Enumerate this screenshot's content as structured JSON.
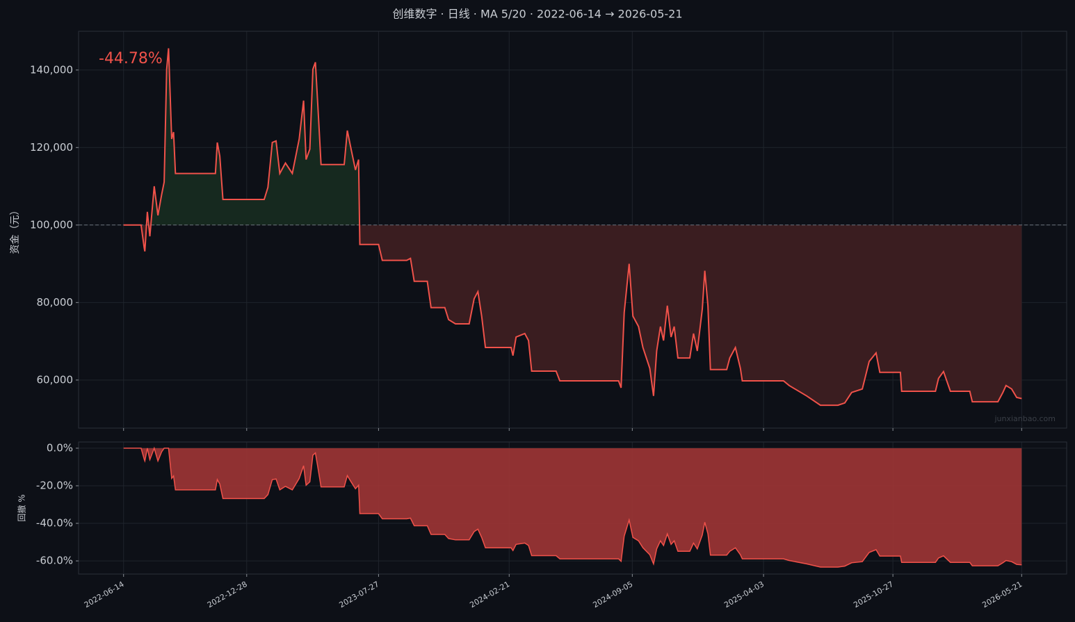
{
  "title": "创维数字 · 日线 · MA 5/20 · 2022-06-14 → 2026-05-21",
  "chart_data": [
    {
      "type": "line",
      "ylabel": "资金（元）",
      "annotation": "-44.78%",
      "watermark": "junxianbao.com",
      "color": "#f0524a",
      "baseline": 100000,
      "gain_color": "#16291f",
      "loss_color": "#3a1d20",
      "x": [
        "2022-06-14",
        "2022-07-12",
        "2022-07-17",
        "2022-07-18",
        "2022-07-22",
        "2022-07-26",
        "2022-08-02",
        "2022-08-08",
        "2022-08-14",
        "2022-08-18",
        "2022-08-22",
        "2022-08-25",
        "2022-08-30",
        "2022-09-02",
        "2022-09-05",
        "2022-11-08",
        "2022-11-11",
        "2022-11-15",
        "2022-11-20",
        "2023-01-25",
        "2023-01-31",
        "2023-02-07",
        "2023-02-13",
        "2023-02-19",
        "2023-02-28",
        "2023-03-11",
        "2023-03-22",
        "2023-03-29",
        "2023-04-02",
        "2023-04-08",
        "2023-04-13",
        "2023-04-17",
        "2023-04-22",
        "2023-04-26",
        "2023-06-02",
        "2023-06-07",
        "2023-06-13",
        "2023-06-20",
        "2023-06-25",
        "2023-06-27",
        "2023-07-27",
        "2023-08-02",
        "2023-09-10",
        "2023-09-16",
        "2023-09-22",
        "2023-10-13",
        "2023-10-19",
        "2023-11-10",
        "2023-11-16",
        "2023-11-27",
        "2023-12-19",
        "2023-12-27",
        "2024-01-02",
        "2024-01-08",
        "2024-01-14",
        "2024-02-24",
        "2024-02-27",
        "2024-03-03",
        "2024-03-17",
        "2024-03-23",
        "2024-03-28",
        "2024-05-06",
        "2024-05-12",
        "2024-08-14",
        "2024-08-18",
        "2024-08-23",
        "2024-08-31",
        "2024-09-06",
        "2024-09-15",
        "2024-09-22",
        "2024-10-03",
        "2024-10-09",
        "2024-10-14",
        "2024-10-20",
        "2024-10-25",
        "2024-10-31",
        "2024-11-06",
        "2024-11-11",
        "2024-11-17",
        "2024-12-06",
        "2024-12-12",
        "2024-12-18",
        "2024-12-26",
        "2024-12-30",
        "2025-01-04",
        "2025-01-08",
        "2025-02-03",
        "2025-02-08",
        "2025-02-17",
        "2025-02-25",
        "2025-02-28",
        "2025-05-05",
        "2025-05-14",
        "2025-06-11",
        "2025-07-03",
        "2025-07-31",
        "2025-08-11",
        "2025-08-22",
        "2025-09-08",
        "2025-09-19",
        "2025-09-30",
        "2025-10-06",
        "2025-11-08",
        "2025-11-10",
        "2026-01-03",
        "2026-01-08",
        "2026-01-16",
        "2026-01-27",
        "2026-02-27",
        "2026-03-03",
        "2026-04-13",
        "2026-04-21",
        "2026-04-26",
        "2026-05-05",
        "2026-05-13",
        "2026-05-21"
      ],
      "values": [
        100000,
        100000,
        94100,
        93200,
        103400,
        97100,
        110000,
        102500,
        107900,
        111100,
        140200,
        145600,
        122200,
        124000,
        113300,
        113300,
        121300,
        117800,
        106600,
        106600,
        109700,
        121300,
        121700,
        113300,
        116000,
        113300,
        122200,
        132100,
        116900,
        119600,
        140200,
        142000,
        127600,
        115600,
        115600,
        124400,
        119600,
        114200,
        116900,
        95000,
        95000,
        90900,
        90900,
        91400,
        85500,
        85500,
        78700,
        78700,
        75600,
        74500,
        74500,
        81000,
        82800,
        76500,
        68400,
        68400,
        66300,
        71100,
        72000,
        70200,
        62300,
        62300,
        59800,
        59800,
        58000,
        77400,
        90000,
        76500,
        73800,
        68400,
        63000,
        55900,
        67500,
        73800,
        70200,
        79200,
        71100,
        73800,
        65700,
        65700,
        72000,
        67500,
        78300,
        88200,
        79200,
        62700,
        62700,
        65700,
        68400,
        63000,
        59800,
        59800,
        58600,
        55900,
        53500,
        53500,
        54100,
        56800,
        57700,
        64800,
        67000,
        62000,
        62000,
        57100,
        57100,
        60400,
        62200,
        57100,
        57100,
        54400,
        54400,
        56800,
        58600,
        57700,
        55500,
        55220
      ],
      "xlim": [
        "2022-04-03",
        "2026-08-01"
      ],
      "ylim": [
        47600,
        150000
      ],
      "yticks": [
        {
          "value": 60000,
          "label": "60,000"
        },
        {
          "value": 80000,
          "label": "80,000"
        },
        {
          "value": 100000,
          "label": "100,000"
        },
        {
          "value": 120000,
          "label": "120,000"
        },
        {
          "value": 140000,
          "label": "140,000"
        }
      ],
      "xticks": [
        "2022-06-14",
        "2022-12-28",
        "2023-07-27",
        "2024-02-21",
        "2024-09-05",
        "2025-04-03",
        "2025-10-27",
        "2026-05-21"
      ],
      "grid": true
    },
    {
      "type": "area",
      "ylabel": "回撤 %",
      "color": "#f0524a",
      "fill": "#9e3535",
      "x": [
        "2022-06-14",
        "2022-07-12",
        "2022-07-17",
        "2022-07-18",
        "2022-07-22",
        "2022-07-26",
        "2022-08-02",
        "2022-08-08",
        "2022-08-14",
        "2022-08-18",
        "2022-08-22",
        "2022-08-25",
        "2022-08-30",
        "2022-09-02",
        "2022-09-05",
        "2022-11-08",
        "2022-11-11",
        "2022-11-15",
        "2022-11-20",
        "2023-01-25",
        "2023-01-31",
        "2023-02-07",
        "2023-02-13",
        "2023-02-19",
        "2023-02-28",
        "2023-03-11",
        "2023-03-22",
        "2023-03-29",
        "2023-04-02",
        "2023-04-08",
        "2023-04-13",
        "2023-04-17",
        "2023-04-22",
        "2023-04-26",
        "2023-06-02",
        "2023-06-07",
        "2023-06-13",
        "2023-06-20",
        "2023-06-25",
        "2023-06-27",
        "2023-07-27",
        "2023-08-02",
        "2023-09-10",
        "2023-09-16",
        "2023-09-22",
        "2023-10-13",
        "2023-10-19",
        "2023-11-10",
        "2023-11-16",
        "2023-11-27",
        "2023-12-19",
        "2023-12-27",
        "2024-01-02",
        "2024-01-08",
        "2024-01-14",
        "2024-02-24",
        "2024-02-27",
        "2024-03-03",
        "2024-03-17",
        "2024-03-23",
        "2024-03-28",
        "2024-05-06",
        "2024-05-12",
        "2024-08-14",
        "2024-08-18",
        "2024-08-23",
        "2024-08-31",
        "2024-09-06",
        "2024-09-15",
        "2024-09-22",
        "2024-10-03",
        "2024-10-09",
        "2024-10-14",
        "2024-10-20",
        "2024-10-25",
        "2024-10-31",
        "2024-11-06",
        "2024-11-11",
        "2024-11-17",
        "2024-12-06",
        "2024-12-12",
        "2024-12-18",
        "2024-12-26",
        "2024-12-30",
        "2025-01-04",
        "2025-01-08",
        "2025-02-03",
        "2025-02-08",
        "2025-02-17",
        "2025-02-25",
        "2025-02-28",
        "2025-05-05",
        "2025-05-14",
        "2025-06-11",
        "2025-07-03",
        "2025-07-31",
        "2025-08-11",
        "2025-08-22",
        "2025-09-08",
        "2025-09-19",
        "2025-09-30",
        "2025-10-06",
        "2025-11-08",
        "2025-11-10",
        "2026-01-03",
        "2026-01-08",
        "2026-01-16",
        "2026-01-27",
        "2026-02-27",
        "2026-03-03",
        "2026-04-13",
        "2026-04-21",
        "2026-04-26",
        "2026-05-05",
        "2026-05-13",
        "2026-05-21"
      ],
      "values": [
        0,
        0,
        -5.9,
        -6.8,
        0,
        -6.1,
        0,
        -6.8,
        -1.9,
        0,
        0,
        0,
        -16.1,
        -14.8,
        -22.2,
        -22.2,
        -16.7,
        -19.1,
        -26.8,
        -26.8,
        -24.7,
        -16.7,
        -16.4,
        -22.2,
        -20.3,
        -22.2,
        -16.1,
        -9.3,
        -19.7,
        -17.9,
        -3.7,
        -2.5,
        -12.4,
        -20.6,
        -20.6,
        -14.6,
        -17.9,
        -21.6,
        -19.7,
        -34.8,
        -34.8,
        -37.6,
        -37.6,
        -37.2,
        -41.3,
        -41.3,
        -45.9,
        -45.9,
        -48.1,
        -48.8,
        -48.8,
        -44.4,
        -43.1,
        -47.5,
        -53.0,
        -53.0,
        -54.5,
        -51.2,
        -50.5,
        -51.8,
        -57.2,
        -57.2,
        -58.9,
        -58.9,
        -60.2,
        -46.8,
        -38.2,
        -47.5,
        -49.3,
        -53.0,
        -56.7,
        -61.6,
        -53.6,
        -49.3,
        -51.8,
        -45.6,
        -51.2,
        -49.3,
        -54.9,
        -54.9,
        -50.5,
        -53.6,
        -46.2,
        -39.4,
        -45.6,
        -56.9,
        -56.9,
        -54.9,
        -53.0,
        -56.7,
        -58.9,
        -58.9,
        -59.8,
        -61.6,
        -63.3,
        -63.3,
        -62.8,
        -61.0,
        -60.4,
        -55.5,
        -54.0,
        -57.4,
        -57.4,
        -60.8,
        -60.8,
        -58.5,
        -57.3,
        -60.8,
        -60.8,
        -62.6,
        -62.6,
        -61.0,
        -59.8,
        -60.4,
        -61.9,
        -62.1
      ],
      "xlim": [
        "2022-04-03",
        "2026-08-01"
      ],
      "ylim": [
        -67,
        3.3
      ],
      "yticks": [
        {
          "value": -60,
          "label": "-60.0%"
        },
        {
          "value": -40,
          "label": "-40.0%"
        },
        {
          "value": -20,
          "label": "-20.0%"
        },
        {
          "value": 0,
          "label": "0.0%"
        }
      ],
      "xticks": [
        "2022-06-14",
        "2022-12-28",
        "2023-07-27",
        "2024-02-21",
        "2024-09-05",
        "2025-04-03",
        "2025-10-27",
        "2026-05-21"
      ],
      "grid": true
    }
  ]
}
